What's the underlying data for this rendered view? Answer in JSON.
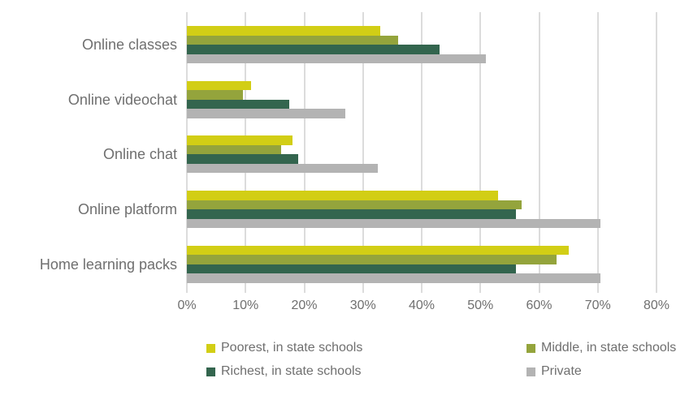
{
  "chart_data": {
    "type": "bar",
    "orientation": "horizontal",
    "title": "",
    "categories": [
      "Online classes",
      "Online videochat",
      "Online chat",
      "Online platform",
      "Home learning packs"
    ],
    "series": [
      {
        "name": "Poorest, in state schools",
        "color": "#d2ce15",
        "values": [
          33,
          11,
          18,
          53,
          65
        ]
      },
      {
        "name": "Middle, in state schools",
        "color": "#94a43c",
        "values": [
          36,
          9.5,
          16,
          57,
          63
        ]
      },
      {
        "name": "Richest, in state schools",
        "color": "#33654e",
        "values": [
          43,
          17.5,
          19,
          56,
          56
        ]
      },
      {
        "name": "Private",
        "color": "#b3b3b3",
        "values": [
          51,
          27,
          32.5,
          70.5,
          70.5
        ]
      }
    ],
    "x_axis": {
      "min": 0,
      "max": 80,
      "tick_step": 10,
      "tick_labels": [
        "0%",
        "10%",
        "20%",
        "30%",
        "40%",
        "50%",
        "60%",
        "70%",
        "80%"
      ]
    },
    "grid": true,
    "legend_position": "bottom",
    "legend_columns": 2
  },
  "style": {
    "gridline_color": "#dcdcdc",
    "text_color": "#6f6f6f",
    "background": "#ffffff"
  }
}
